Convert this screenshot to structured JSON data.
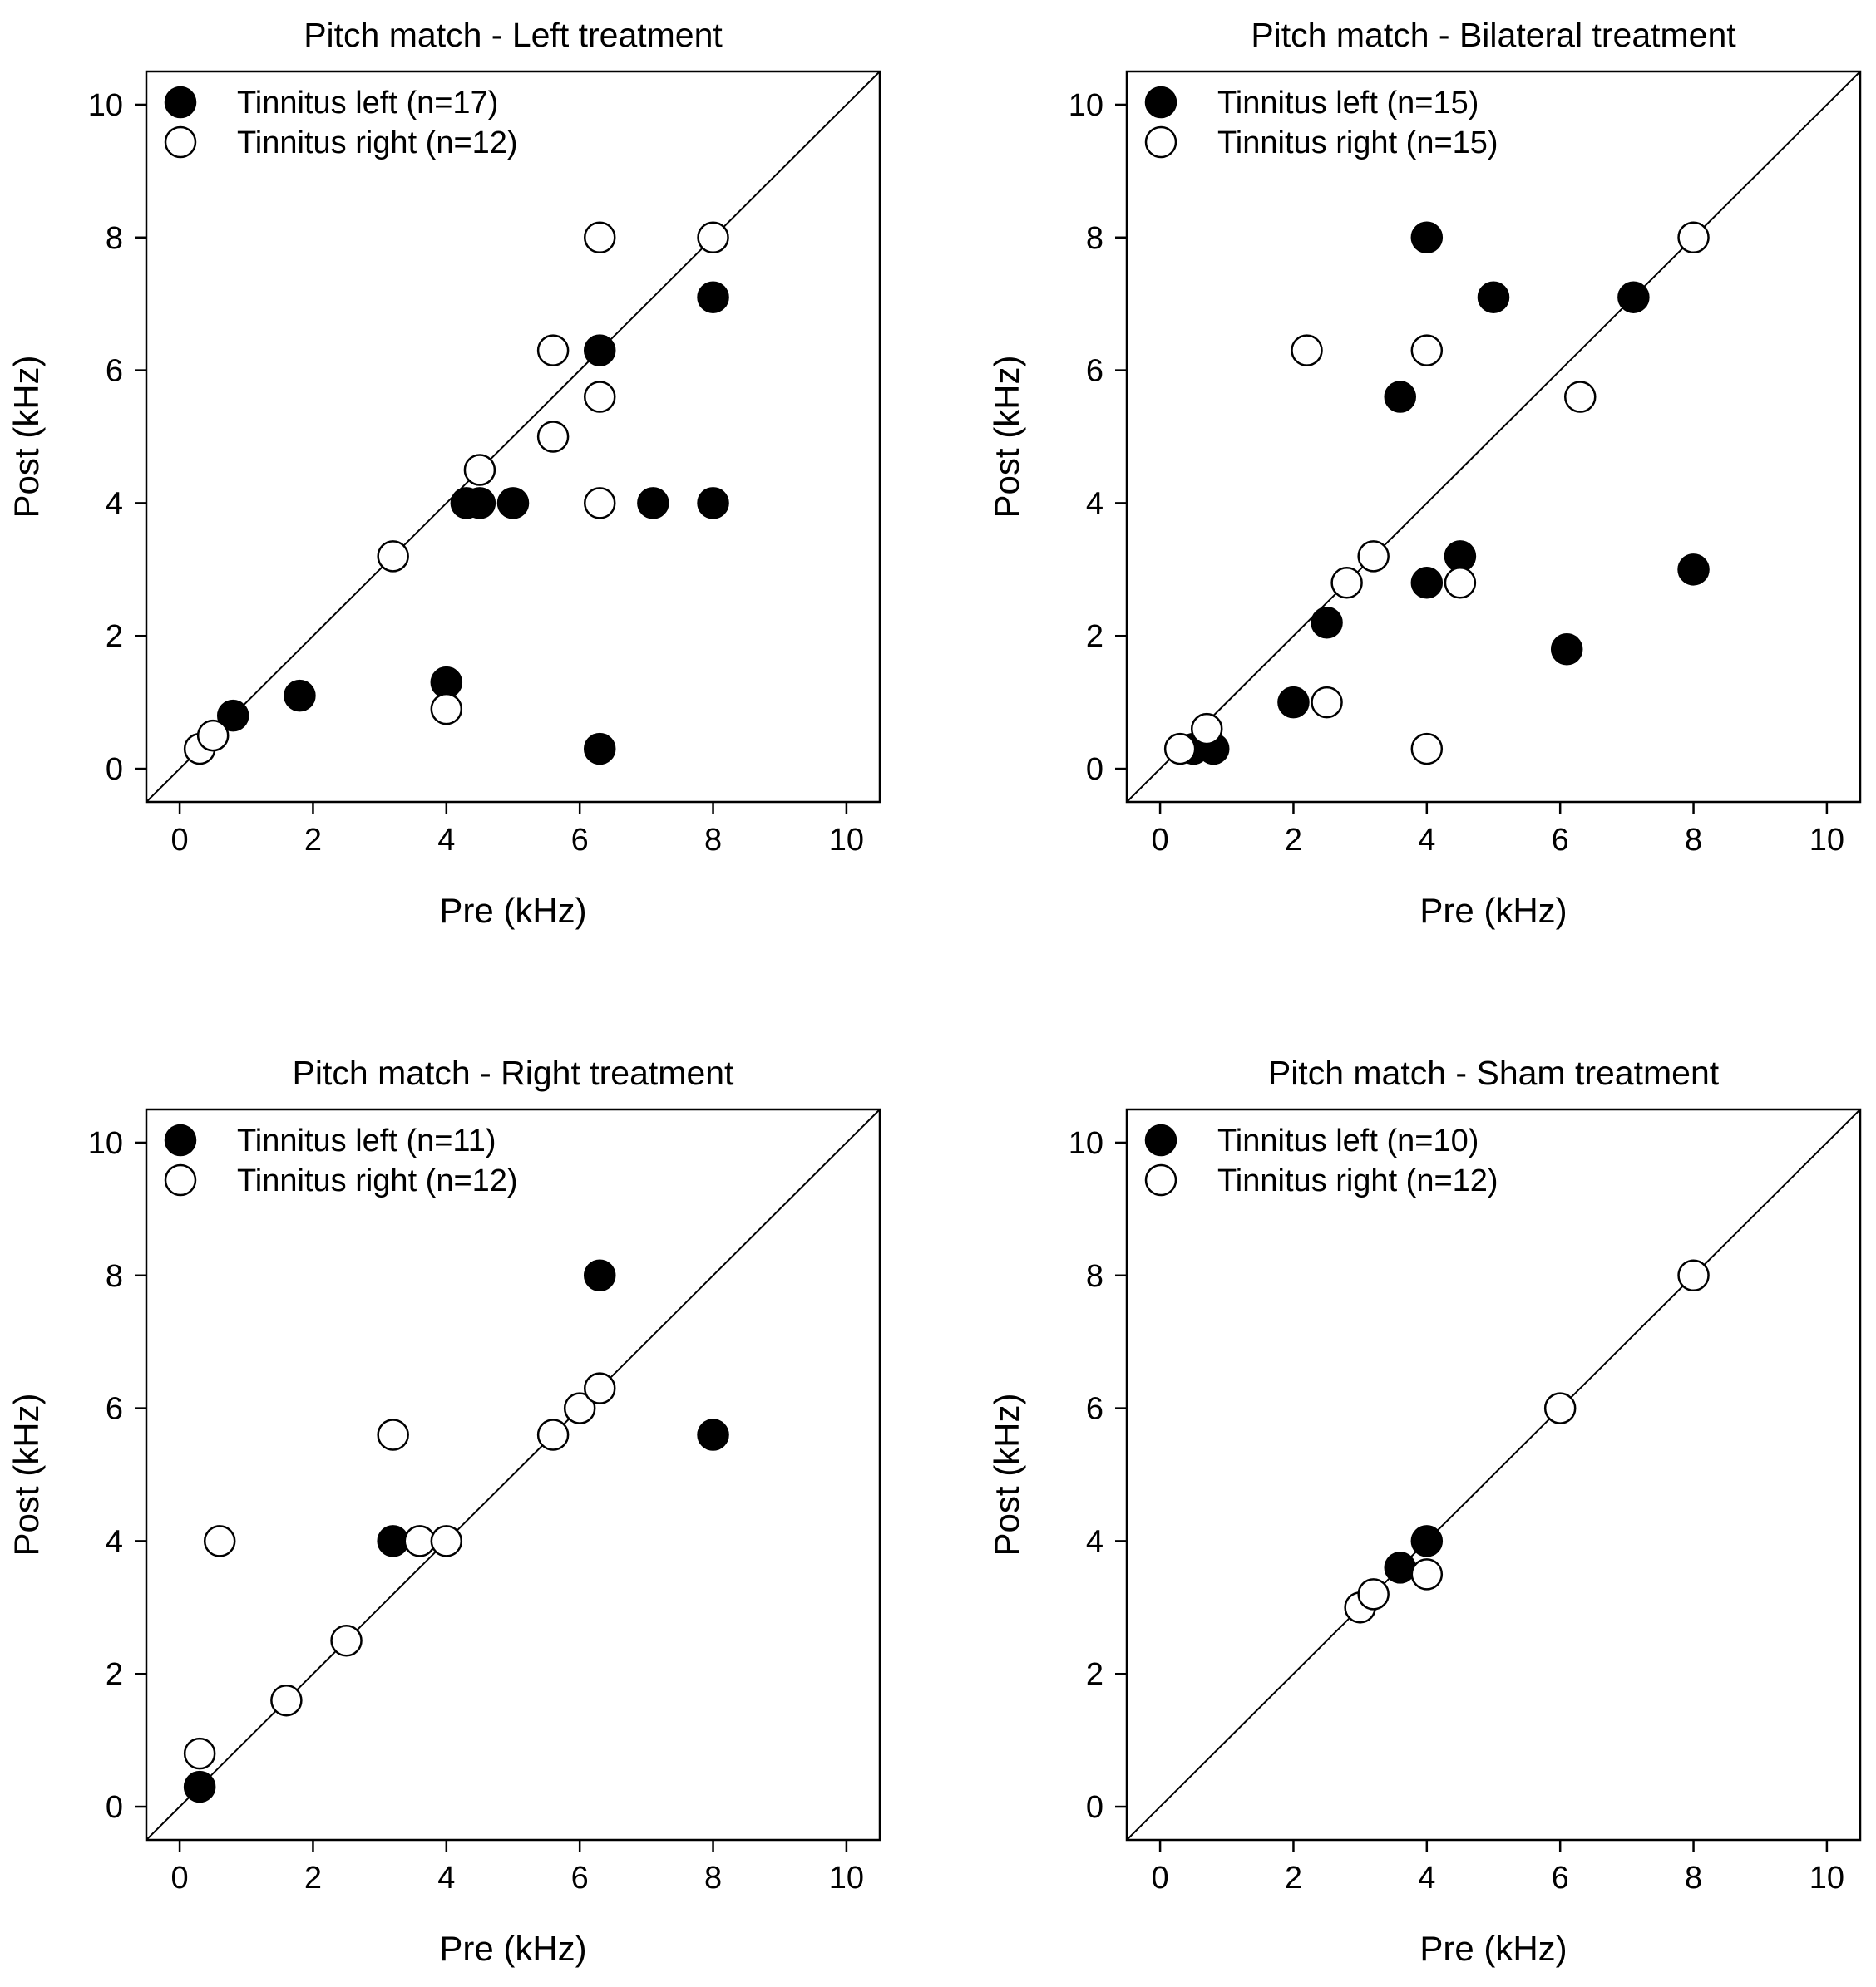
{
  "chart_data": [
    {
      "type": "scatter",
      "title": "Pitch match - Left treatment",
      "xlabel": "Pre (kHz)",
      "ylabel": "Post (kHz)",
      "xlim": [
        -0.5,
        10.5
      ],
      "ylim": [
        -0.5,
        10.5
      ],
      "xticks": [
        "0",
        "2",
        "4",
        "6",
        "8",
        "10"
      ],
      "yticks": [
        "0",
        "2",
        "4",
        "6",
        "8",
        "10"
      ],
      "legend_position": "top-left",
      "identity_line": true,
      "series": [
        {
          "name": "Tinnitus left (n=17)",
          "marker": "filled",
          "points": [
            [
              0.8,
              0.8
            ],
            [
              1.8,
              1.1
            ],
            [
              4.0,
              1.3
            ],
            [
              6.3,
              0.3
            ],
            [
              4.3,
              4.0
            ],
            [
              4.5,
              4.0
            ],
            [
              5.0,
              4.0
            ],
            [
              7.1,
              4.0
            ],
            [
              8.0,
              4.0
            ],
            [
              6.3,
              6.3
            ],
            [
              8.0,
              7.1
            ]
          ]
        },
        {
          "name": "Tinnitus right (n=12)",
          "marker": "open",
          "points": [
            [
              0.3,
              0.3
            ],
            [
              0.5,
              0.5
            ],
            [
              4.0,
              0.9
            ],
            [
              3.2,
              3.2
            ],
            [
              4.5,
              4.5
            ],
            [
              5.6,
              5.0
            ],
            [
              5.6,
              6.3
            ],
            [
              6.3,
              5.6
            ],
            [
              6.3,
              4.0
            ],
            [
              6.3,
              8.0
            ],
            [
              8.0,
              8.0
            ]
          ]
        }
      ]
    },
    {
      "type": "scatter",
      "title": "Pitch match - Bilateral treatment",
      "xlabel": "Pre (kHz)",
      "ylabel": "Post (kHz)",
      "xlim": [
        -0.5,
        10.5
      ],
      "ylim": [
        -0.5,
        10.5
      ],
      "xticks": [
        "0",
        "2",
        "4",
        "6",
        "8",
        "10"
      ],
      "yticks": [
        "0",
        "2",
        "4",
        "6",
        "8",
        "10"
      ],
      "legend_position": "top-left",
      "identity_line": true,
      "series": [
        {
          "name": "Tinnitus left (n=15)",
          "marker": "filled",
          "points": [
            [
              0.5,
              0.3
            ],
            [
              0.8,
              0.3
            ],
            [
              2.0,
              1.0
            ],
            [
              2.5,
              2.2
            ],
            [
              3.6,
              5.6
            ],
            [
              4.0,
              8.0
            ],
            [
              4.0,
              2.8
            ],
            [
              4.5,
              3.2
            ],
            [
              5.0,
              7.1
            ],
            [
              6.1,
              1.8
            ],
            [
              7.1,
              7.1
            ],
            [
              8.0,
              3.0
            ]
          ]
        },
        {
          "name": "Tinnitus right (n=15)",
          "marker": "open",
          "points": [
            [
              0.3,
              0.3
            ],
            [
              0.7,
              0.6
            ],
            [
              2.2,
              6.3
            ],
            [
              2.5,
              1.0
            ],
            [
              2.8,
              2.8
            ],
            [
              3.2,
              3.2
            ],
            [
              4.0,
              6.3
            ],
            [
              4.0,
              0.3
            ],
            [
              4.5,
              2.8
            ],
            [
              6.3,
              5.6
            ],
            [
              8.0,
              8.0
            ]
          ]
        }
      ]
    },
    {
      "type": "scatter",
      "title": "Pitch match - Right treatment",
      "xlabel": "Pre (kHz)",
      "ylabel": "Post (kHz)",
      "xlim": [
        -0.5,
        10.5
      ],
      "ylim": [
        -0.5,
        10.5
      ],
      "xticks": [
        "0",
        "2",
        "4",
        "6",
        "8",
        "10"
      ],
      "yticks": [
        "0",
        "2",
        "4",
        "6",
        "8",
        "10"
      ],
      "legend_position": "top-left",
      "identity_line": true,
      "series": [
        {
          "name": "Tinnitus left (n=11)",
          "marker": "filled",
          "points": [
            [
              0.3,
              0.3
            ],
            [
              3.2,
              4.0
            ],
            [
              6.3,
              8.0
            ],
            [
              8.0,
              5.6
            ]
          ]
        },
        {
          "name": "Tinnitus right (n=12)",
          "marker": "open",
          "points": [
            [
              0.3,
              0.8
            ],
            [
              0.6,
              4.0
            ],
            [
              1.6,
              1.6
            ],
            [
              2.5,
              2.5
            ],
            [
              3.2,
              5.6
            ],
            [
              3.6,
              4.0
            ],
            [
              4.0,
              4.0
            ],
            [
              5.6,
              5.6
            ],
            [
              6.0,
              6.0
            ],
            [
              6.3,
              6.3
            ]
          ]
        }
      ]
    },
    {
      "type": "scatter",
      "title": "Pitch match - Sham treatment",
      "xlabel": "Pre (kHz)",
      "ylabel": "Post (kHz)",
      "xlim": [
        -0.5,
        10.5
      ],
      "ylim": [
        -0.5,
        10.5
      ],
      "xticks": [
        "0",
        "2",
        "4",
        "6",
        "8",
        "10"
      ],
      "yticks": [
        "0",
        "2",
        "4",
        "6",
        "8",
        "10"
      ],
      "legend_position": "top-left",
      "identity_line": true,
      "series": [
        {
          "name": "Tinnitus left (n=10)",
          "marker": "filled",
          "points": [
            [
              3.6,
              3.6
            ],
            [
              4.0,
              4.0
            ]
          ]
        },
        {
          "name": "Tinnitus right (n=12)",
          "marker": "open",
          "points": [
            [
              3.0,
              3.0
            ],
            [
              3.2,
              3.2
            ],
            [
              4.0,
              3.5
            ],
            [
              6.0,
              6.0
            ],
            [
              8.0,
              8.0
            ]
          ]
        }
      ]
    }
  ]
}
